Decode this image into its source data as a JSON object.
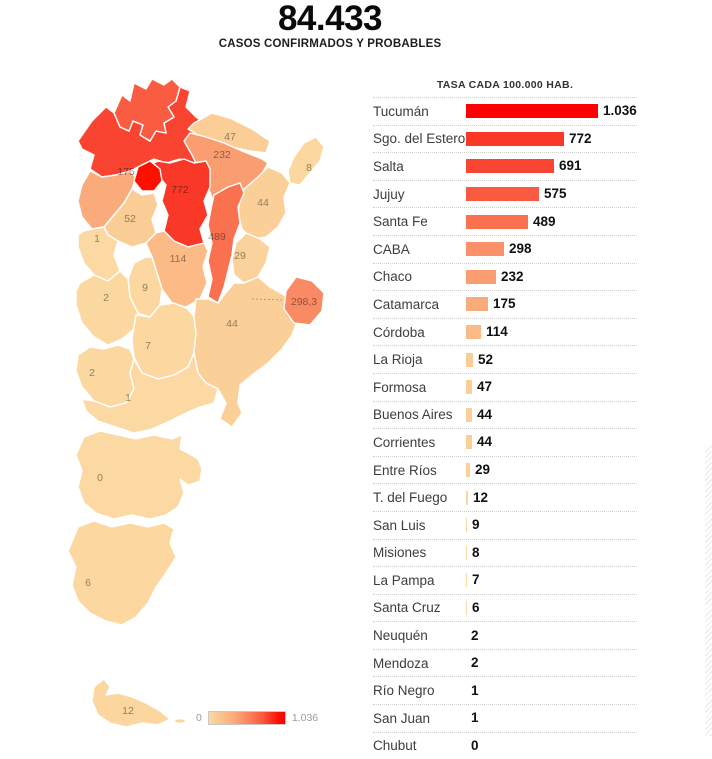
{
  "header": {
    "title": "84.433",
    "subtitle": "CASOS CONFIRMADOS Y PROBABLES"
  },
  "chart_data": {
    "type": "bar",
    "orientation": "horizontal",
    "title": "TASA CADA 100.000 HAB.",
    "xlim": [
      0,
      1036
    ],
    "grid": false,
    "categories": [
      "Tucumán",
      "Sgo. del Estero",
      "Salta",
      "Jujuy",
      "Santa Fe",
      "CABA",
      "Chaco",
      "Catamarca",
      "Córdoba",
      "La Rioja",
      "Formosa",
      "Buenos Aires",
      "Corrientes",
      "Entre Ríos",
      "T. del Fuego",
      "San Luis",
      "Misiones",
      "La Pampa",
      "Santa Cruz",
      "Neuquén",
      "Mendoza",
      "Río Negro",
      "San Juan",
      "Chubut"
    ],
    "values": [
      1036,
      772,
      691,
      575,
      489,
      298,
      232,
      175,
      114,
      52,
      47,
      44,
      44,
      29,
      12,
      9,
      8,
      7,
      6,
      2,
      2,
      1,
      1,
      0
    ],
    "value_labels": [
      "1.036",
      "772",
      "691",
      "575",
      "489",
      "298",
      "232",
      "175",
      "114",
      "52",
      "47",
      "44",
      "44",
      "29",
      "12",
      "9",
      "8",
      "7",
      "6",
      "2",
      "2",
      "1",
      "1",
      "0"
    ],
    "bar_colors": [
      "#fe0000",
      "#f93828",
      "#f94533",
      "#fa5a40",
      "#fa7150",
      "#fa9168",
      "#fa9e71",
      "#faab7c",
      "#fbba86",
      "#fbcd96",
      "#fbce97",
      "#fbcf98",
      "#fbcf98",
      "#fbd29b",
      "#fcd69f",
      "#fcd7a0",
      "#fcd7a0",
      "#fcd7a0",
      "#fcd7a0",
      "#fcd8a1",
      "#fcd8a1",
      "#fcd9a2",
      "#fcd9a2",
      "#fcd9a2"
    ]
  },
  "map": {
    "provinces": [
      {
        "id": "salta",
        "name": "Salta",
        "value": 691,
        "color": "#f94431",
        "label": "",
        "lx": 0,
        "ly": 0
      },
      {
        "id": "jujuy",
        "name": "Jujuy",
        "value": 575,
        "color": "#fa5c41",
        "label": "",
        "lx": 0,
        "ly": 0
      },
      {
        "id": "formosa",
        "name": "Formosa",
        "value": 47,
        "color": "#fbce97",
        "label": "47",
        "lx": 200,
        "ly": 65
      },
      {
        "id": "chaco",
        "name": "Chaco",
        "value": 232,
        "color": "#fa9e71",
        "label": "232",
        "lx": 192,
        "ly": 83
      },
      {
        "id": "misiones",
        "name": "Misiones",
        "value": 8,
        "color": "#fcd7a0",
        "label": "8",
        "lx": 279,
        "ly": 96
      },
      {
        "id": "catamarca",
        "name": "Catamarca",
        "value": 175,
        "color": "#faab7c",
        "label": "175",
        "lx": 96,
        "ly": 100
      },
      {
        "id": "santiago",
        "name": "Sgo. del Estero",
        "value": 772,
        "color": "#f93828",
        "label": "772",
        "lx": 150,
        "ly": 118
      },
      {
        "id": "tucuman",
        "name": "Tucumán",
        "value": 1036,
        "color": "#fe0f00",
        "label": "",
        "lx": 0,
        "ly": 0
      },
      {
        "id": "corrientes",
        "name": "Corrientes",
        "value": 44,
        "color": "#fbcf98",
        "label": "44",
        "lx": 233,
        "ly": 131
      },
      {
        "id": "larioja",
        "name": "La Rioja",
        "value": 52,
        "color": "#fbcd96",
        "label": "52",
        "lx": 100,
        "ly": 147
      },
      {
        "id": "sanjuan",
        "name": "San Juan",
        "value": 1,
        "color": "#fcd9a2",
        "label": "1",
        "lx": 67,
        "ly": 167
      },
      {
        "id": "santafe",
        "name": "Santa Fe",
        "value": 489,
        "color": "#fa7150",
        "label": "489",
        "lx": 187,
        "ly": 165
      },
      {
        "id": "entrerios",
        "name": "Entre Ríos",
        "value": 29,
        "color": "#fbd29b",
        "label": "29",
        "lx": 210,
        "ly": 184
      },
      {
        "id": "cordoba",
        "name": "Córdoba",
        "value": 114,
        "color": "#fbba86",
        "label": "114",
        "lx": 148,
        "ly": 187
      },
      {
        "id": "sanluis",
        "name": "San Luis",
        "value": 9,
        "color": "#fcd7a0",
        "label": "9",
        "lx": 115,
        "ly": 216
      },
      {
        "id": "mendoza",
        "name": "Mendoza",
        "value": 2,
        "color": "#fcd8a1",
        "label": "2",
        "lx": 76,
        "ly": 226
      },
      {
        "id": "lapampa",
        "name": "La Pampa",
        "value": 7,
        "color": "#fcd7a0",
        "label": "7",
        "lx": 118,
        "ly": 274
      },
      {
        "id": "buenosaires",
        "name": "Buenos Aires",
        "value": 44,
        "color": "#fbcf98",
        "label": "44",
        "lx": 202,
        "ly": 252
      },
      {
        "id": "neuquen",
        "name": "Neuquén",
        "value": 2,
        "color": "#fcd8a1",
        "label": "2",
        "lx": 62,
        "ly": 301
      },
      {
        "id": "rionegro",
        "name": "Río Negro",
        "value": 1,
        "color": "#fcd9a2",
        "label": "1",
        "lx": 98,
        "ly": 326
      },
      {
        "id": "chubut",
        "name": "Chubut",
        "value": 0,
        "color": "#fcd9a2",
        "label": "0",
        "lx": 70,
        "ly": 406
      },
      {
        "id": "santacruz",
        "name": "Santa Cruz",
        "value": 6,
        "color": "#fcd7a0",
        "label": "6",
        "lx": 58,
        "ly": 511
      },
      {
        "id": "tdf",
        "name": "T. del Fuego",
        "value": 12,
        "color": "#fcd69f",
        "label": "12",
        "lx": 98,
        "ly": 639
      }
    ],
    "caba": {
      "name": "CABA",
      "label": "298,3",
      "value": 298.3,
      "color": "#fa8a63",
      "lx": 274,
      "ly": 230
    },
    "legend": {
      "min_label": "0",
      "max_label": "1.036"
    }
  },
  "colors": {
    "scale_min": "#fcd9a2",
    "scale_max": "#ff0000"
  }
}
